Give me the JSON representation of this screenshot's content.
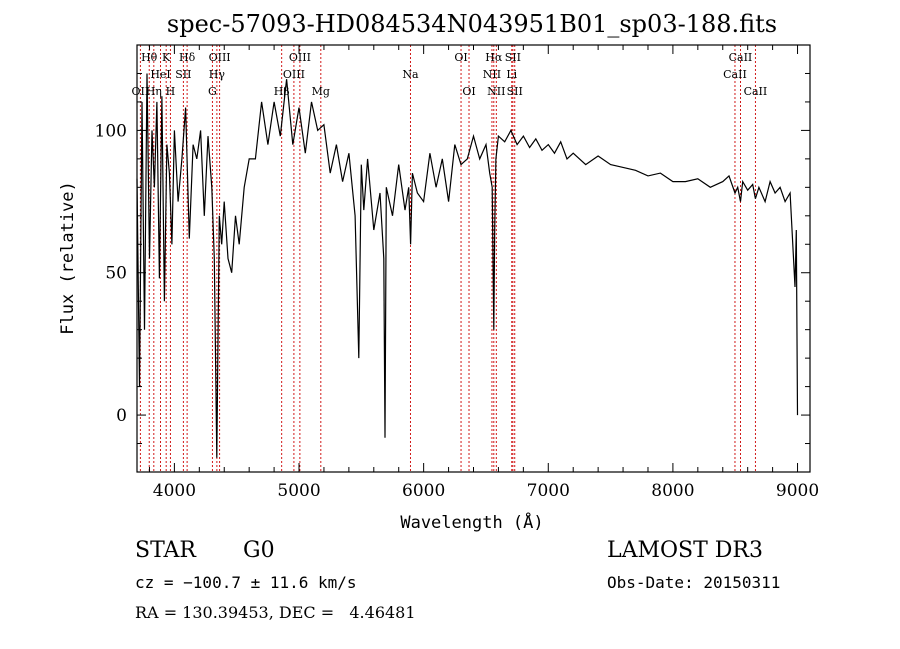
{
  "chart_data": {
    "type": "line",
    "title": "spec-57093-HD084534N043951B01_sp03-188.fits",
    "xlabel": "Wavelength (Å)",
    "ylabel": "Flux (relative)",
    "xlim": [
      3700,
      9100
    ],
    "ylim": [
      -20,
      130
    ],
    "x_ticks": [
      4000,
      5000,
      6000,
      7000,
      8000,
      9000
    ],
    "y_ticks": [
      0,
      50,
      100
    ],
    "series": [
      {
        "name": "spectrum",
        "x": [
          3700,
          3720,
          3740,
          3760,
          3780,
          3800,
          3820,
          3840,
          3860,
          3880,
          3900,
          3920,
          3940,
          3960,
          3980,
          4000,
          4030,
          4060,
          4090,
          4120,
          4150,
          4180,
          4210,
          4240,
          4270,
          4300,
          4320,
          4340,
          4360,
          4380,
          4400,
          4430,
          4460,
          4490,
          4520,
          4560,
          4600,
          4650,
          4700,
          4750,
          4800,
          4850,
          4900,
          4950,
          5000,
          5050,
          5100,
          5150,
          5200,
          5250,
          5300,
          5350,
          5400,
          5450,
          5480,
          5500,
          5520,
          5550,
          5600,
          5650,
          5680,
          5690,
          5700,
          5750,
          5800,
          5850,
          5880,
          5895,
          5910,
          5950,
          6000,
          6050,
          6100,
          6150,
          6200,
          6250,
          6300,
          6350,
          6400,
          6450,
          6500,
          6530,
          6550,
          6563,
          6570,
          6580,
          6600,
          6650,
          6700,
          6750,
          6800,
          6850,
          6900,
          6950,
          7000,
          7050,
          7100,
          7150,
          7200,
          7300,
          7400,
          7500,
          7600,
          7700,
          7800,
          7900,
          8000,
          8100,
          8200,
          8300,
          8400,
          8450,
          8498,
          8520,
          8542,
          8560,
          8600,
          8640,
          8662,
          8690,
          8740,
          8780,
          8820,
          8860,
          8900,
          8940,
          8980,
          8990,
          9000
        ],
        "values": [
          83,
          10,
          110,
          30,
          120,
          55,
          100,
          80,
          110,
          48,
          112,
          40,
          95,
          85,
          60,
          100,
          75,
          90,
          108,
          62,
          95,
          90,
          100,
          70,
          98,
          80,
          55,
          -15,
          70,
          60,
          75,
          55,
          50,
          70,
          60,
          80,
          90,
          90,
          110,
          95,
          110,
          98,
          118,
          95,
          108,
          92,
          110,
          100,
          102,
          85,
          95,
          82,
          92,
          70,
          20,
          88,
          72,
          90,
          65,
          78,
          55,
          -8,
          80,
          70,
          88,
          72,
          80,
          60,
          85,
          78,
          75,
          92,
          80,
          90,
          75,
          95,
          88,
          90,
          98,
          90,
          95,
          85,
          80,
          30,
          65,
          90,
          98,
          96,
          100,
          95,
          98,
          94,
          97,
          93,
          95,
          92,
          96,
          90,
          92,
          88,
          91,
          88,
          87,
          86,
          84,
          85,
          82,
          82,
          83,
          80,
          82,
          84,
          78,
          80,
          75,
          82,
          79,
          81,
          76,
          80,
          75,
          82,
          78,
          80,
          75,
          78,
          45,
          65,
          0
        ]
      }
    ],
    "line_markers": [
      {
        "name": "OII",
        "wavelength": 3727,
        "row": 2
      },
      {
        "name": "Hθ",
        "wavelength": 3798,
        "row": 0
      },
      {
        "name": "Hη",
        "wavelength": 3835,
        "row": 2
      },
      {
        "name": "HeI",
        "wavelength": 3889,
        "row": 1
      },
      {
        "name": "K",
        "wavelength": 3934,
        "row": 0
      },
      {
        "name": "H",
        "wavelength": 3968,
        "row": 2
      },
      {
        "name": "SII",
        "wavelength": 4072,
        "row": 1
      },
      {
        "name": "Hδ",
        "wavelength": 4102,
        "row": 0
      },
      {
        "name": "G",
        "wavelength": 4305,
        "row": 2
      },
      {
        "name": "Hγ",
        "wavelength": 4341,
        "row": 1
      },
      {
        "name": "OIII",
        "wavelength": 4363,
        "row": 0
      },
      {
        "name": "Hβ",
        "wavelength": 4861,
        "row": 2
      },
      {
        "name": "OIII",
        "wavelength": 4959,
        "row": 1
      },
      {
        "name": "OIII",
        "wavelength": 5007,
        "row": 0
      },
      {
        "name": "Mg",
        "wavelength": 5175,
        "row": 2
      },
      {
        "name": "Na",
        "wavelength": 5894,
        "row": 1
      },
      {
        "name": "OI",
        "wavelength": 6300,
        "row": 0
      },
      {
        "name": "OI",
        "wavelength": 6364,
        "row": 2
      },
      {
        "name": "NII",
        "wavelength": 6548,
        "row": 1
      },
      {
        "name": "Hα",
        "wavelength": 6563,
        "row": 0
      },
      {
        "name": "NII",
        "wavelength": 6583,
        "row": 2
      },
      {
        "name": "Li",
        "wavelength": 6707,
        "row": 1
      },
      {
        "name": "SII",
        "wavelength": 6716,
        "row": 0
      },
      {
        "name": "SII",
        "wavelength": 6731,
        "row": 2
      },
      {
        "name": "CaII",
        "wavelength": 8498,
        "row": 1
      },
      {
        "name": "CaII",
        "wavelength": 8542,
        "row": 0
      },
      {
        "name": "CaII",
        "wavelength": 8662,
        "row": 2
      }
    ],
    "colors": {
      "spectrum": "#000000",
      "marker": "#cc0000",
      "axes": "#000000"
    }
  },
  "info": {
    "object_class": "STAR",
    "subclass": "G0",
    "survey": "LAMOST DR3",
    "redshift_line": "cz = −100.7 ± 11.6 km/s",
    "obs_date_line": "Obs-Date: 20150311",
    "coords_line": "RA = 130.39453, DEC =   4.46481"
  }
}
